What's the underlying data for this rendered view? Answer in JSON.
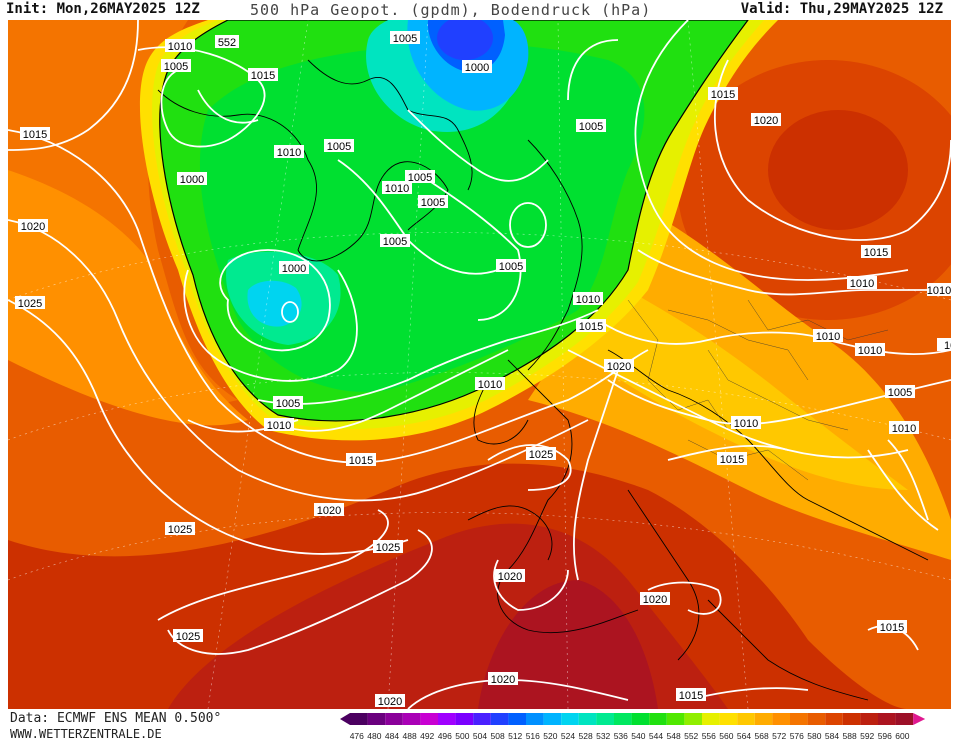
{
  "header": {
    "init": "Init: Mon,26MAY2025 12Z",
    "title": "500 hPa Geopot. (gpdm), Bodendruck (hPa)",
    "valid": "Valid: Thu,29MAY2025 12Z"
  },
  "footer": {
    "data_source": "Data: ECMWF ENS MEAN 0.500°",
    "website": "WWW.WETTERZENTRALE.DE"
  },
  "legend": {
    "ticks": [
      "476",
      "480",
      "484",
      "488",
      "492",
      "496",
      "500",
      "504",
      "508",
      "512",
      "516",
      "520",
      "524",
      "528",
      "532",
      "536",
      "540",
      "544",
      "548",
      "552",
      "556",
      "560",
      "564",
      "568",
      "572",
      "576",
      "580",
      "584",
      "588",
      "592",
      "596",
      "600"
    ],
    "colors": [
      "#4b0060",
      "#6a007e",
      "#8a009a",
      "#a900b6",
      "#c800d2",
      "#a000ff",
      "#7a00ff",
      "#4a20ff",
      "#2040ff",
      "#0060ff",
      "#0090ff",
      "#00b4ff",
      "#00d4f0",
      "#00e4c0",
      "#00ea90",
      "#00e860",
      "#00e030",
      "#20e010",
      "#50e800",
      "#90ee00",
      "#e6f000",
      "#ffe000",
      "#ffc800",
      "#ffac00",
      "#ff9000",
      "#f47400",
      "#e85c00",
      "#dc4400",
      "#cc3000",
      "#bc2010",
      "#ac1420",
      "#9c1028",
      "#e01890"
    ]
  },
  "isobar_labels": [
    "1010",
    "552",
    "1005",
    "1000",
    "1015",
    "1005",
    "1015",
    "1010",
    "1005",
    "1000",
    "1020",
    "1010",
    "1005",
    "1005",
    "1005",
    "1005",
    "1005",
    "1000",
    "1010",
    "1015",
    "1010",
    "1005",
    "1010",
    "1010",
    "1015",
    "1020",
    "1010",
    "1010",
    "1025",
    "1015",
    "1005",
    "1010",
    "1010",
    "1015",
    "1025",
    "1020",
    "1025",
    "1020",
    "1025",
    "1020",
    "1020",
    "1015",
    "1015",
    "1015",
    "1020",
    "1010",
    "1010"
  ]
}
